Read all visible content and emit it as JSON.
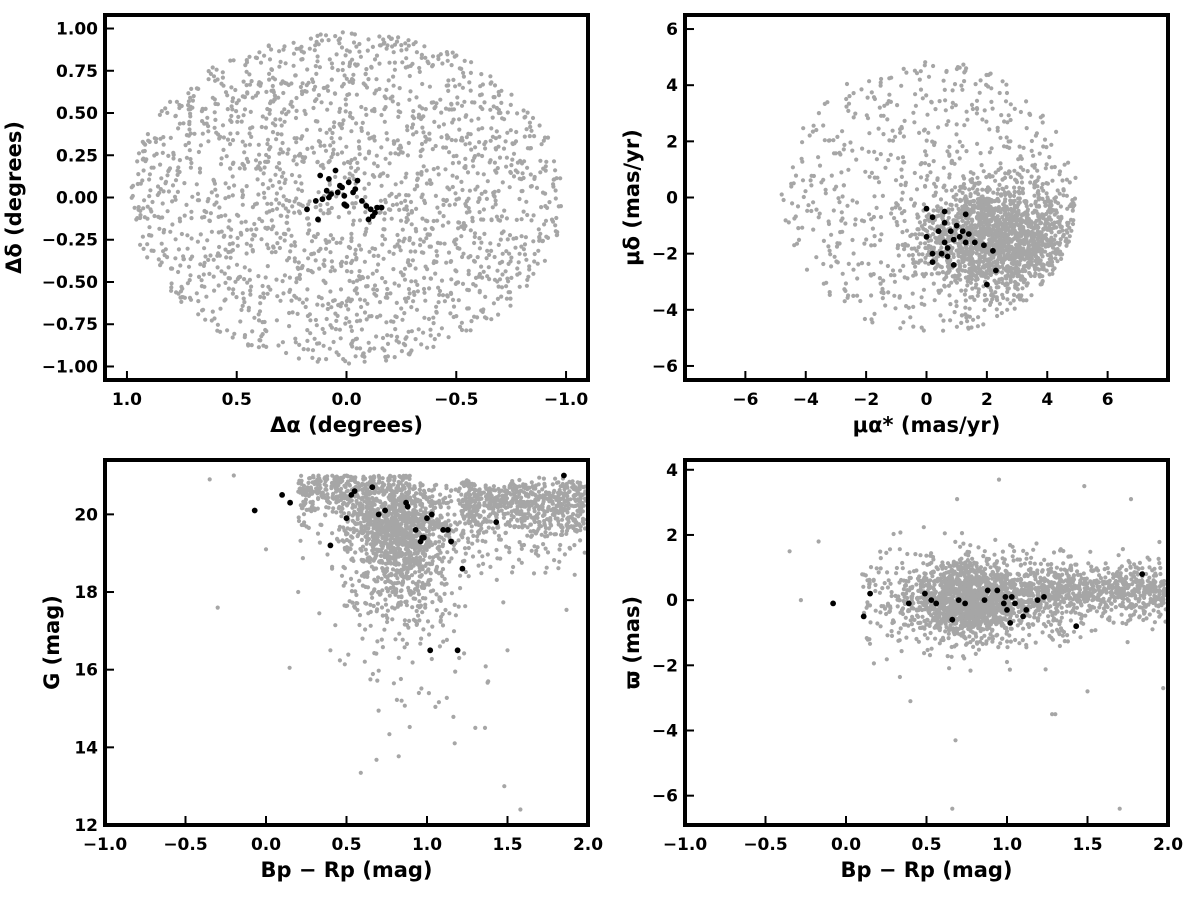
{
  "colors": {
    "field_stars": "#a6a6a6",
    "members": "#000000",
    "frame": "#000000"
  },
  "chart_data": [
    {
      "type": "scatter",
      "xlabel": "Δα (degrees)",
      "ylabel": "Δδ (degrees)",
      "xlim": [
        1.1,
        -1.1
      ],
      "ylim": [
        -1.08,
        1.08
      ],
      "x_reversed": true,
      "xticks": [
        1.0,
        0.5,
        0.0,
        -0.5,
        -1.0
      ],
      "xtick_labels": [
        "1.0",
        "0.5",
        "0.0",
        "−0.5",
        "−1.0"
      ],
      "yticks": [
        1.0,
        0.75,
        0.5,
        0.25,
        0.0,
        -0.25,
        -0.5,
        -0.75,
        -1.0
      ],
      "ytick_labels": [
        "1.00",
        "0.75",
        "0.50",
        "0.25",
        "0.00",
        "−0.25",
        "−0.50",
        "−0.75",
        "−1.00"
      ],
      "grid": false,
      "series": [
        {
          "points": [
            [
              0.05,
              0.16
            ],
            [
              0.08,
              0.11
            ],
            [
              0.12,
              0.13
            ],
            [
              0.09,
              0.04
            ],
            [
              0.03,
              0.07
            ],
            [
              -0.01,
              0.09
            ],
            [
              -0.05,
              0.1
            ],
            [
              0.07,
              0.02
            ],
            [
              0.04,
              0.03
            ],
            [
              0.01,
              0.01
            ],
            [
              -0.03,
              0.03
            ],
            [
              -0.07,
              -0.02
            ],
            [
              0.11,
              -0.01
            ],
            [
              0.14,
              -0.02
            ],
            [
              0.18,
              -0.07
            ],
            [
              0.13,
              -0.13
            ],
            [
              0.01,
              -0.04
            ],
            [
              0.0,
              -0.05
            ],
            [
              -0.09,
              -0.05
            ],
            [
              -0.11,
              -0.07
            ],
            [
              -0.12,
              -0.11
            ],
            [
              -0.1,
              -0.13
            ],
            [
              -0.13,
              -0.09
            ],
            [
              -0.14,
              -0.06
            ],
            [
              -0.16,
              -0.06
            ],
            [
              0.08,
              0.0
            ],
            [
              -0.04,
              0.05
            ],
            [
              0.02,
              0.06
            ]
          ]
        }
      ]
    },
    {
      "type": "scatter",
      "xlabel": "μα* (mas/yr)",
      "ylabel": "μδ (mas/yr)",
      "xlim": [
        -8,
        8
      ],
      "ylim": [
        -6.5,
        6.5
      ],
      "xticks": [
        -6,
        -4,
        -2,
        0,
        2,
        4,
        6
      ],
      "xtick_labels": [
        "−6",
        "−4",
        "−2",
        "0",
        "2",
        "4",
        "6"
      ],
      "yticks": [
        6,
        4,
        2,
        0,
        -2,
        -4,
        -6
      ],
      "ytick_labels": [
        "6",
        "4",
        "2",
        "0",
        "−2",
        "−4",
        "−6"
      ],
      "grid": false,
      "series": [
        {
          "points": [
            [
              0.0,
              -0.4
            ],
            [
              0.2,
              -0.7
            ],
            [
              0.6,
              -0.5
            ],
            [
              1.3,
              -0.6
            ],
            [
              0.6,
              -0.9
            ],
            [
              0.8,
              -1.2
            ],
            [
              1.0,
              -1.0
            ],
            [
              0.0,
              -1.4
            ],
            [
              0.9,
              -1.5
            ],
            [
              1.1,
              -1.4
            ],
            [
              1.2,
              -1.2
            ],
            [
              1.4,
              -1.3
            ],
            [
              1.6,
              -1.6
            ],
            [
              1.3,
              -1.6
            ],
            [
              0.6,
              -1.6
            ],
            [
              0.7,
              -1.8
            ],
            [
              0.2,
              -2.0
            ],
            [
              0.5,
              -2.0
            ],
            [
              0.7,
              -2.1
            ],
            [
              0.2,
              -2.3
            ],
            [
              0.9,
              -2.4
            ],
            [
              1.9,
              -1.7
            ],
            [
              2.2,
              -1.9
            ],
            [
              2.3,
              -2.6
            ],
            [
              2.0,
              -3.1
            ],
            [
              0.4,
              -1.2
            ]
          ]
        }
      ]
    },
    {
      "type": "scatter",
      "xlabel": "Bp − Rp (mag)",
      "ylabel": "G (mag)",
      "xlim": [
        -1.0,
        2.0
      ],
      "ylim": [
        12,
        21.4
      ],
      "xticks": [
        -1.0,
        -0.5,
        0.0,
        0.5,
        1.0,
        1.5,
        2.0
      ],
      "xtick_labels": [
        "−1.0",
        "−0.5",
        "0.0",
        "0.5",
        "1.0",
        "1.5",
        "2.0"
      ],
      "yticks": [
        12,
        14,
        16,
        18,
        20
      ],
      "ytick_labels": [
        "12",
        "14",
        "16",
        "18",
        "20"
      ],
      "grid": false,
      "series": [
        {
          "points": [
            [
              -0.07,
              20.1
            ],
            [
              0.1,
              20.5
            ],
            [
              0.15,
              20.3
            ],
            [
              0.4,
              19.2
            ],
            [
              0.5,
              19.9
            ],
            [
              0.53,
              20.5
            ],
            [
              0.55,
              20.6
            ],
            [
              0.66,
              20.7
            ],
            [
              0.7,
              20.0
            ],
            [
              0.74,
              20.1
            ],
            [
              0.87,
              20.3
            ],
            [
              0.88,
              20.2
            ],
            [
              0.93,
              19.6
            ],
            [
              0.96,
              19.3
            ],
            [
              0.97,
              19.4
            ],
            [
              0.98,
              19.4
            ],
            [
              1.0,
              19.9
            ],
            [
              1.03,
              20.0
            ],
            [
              1.1,
              19.6
            ],
            [
              1.13,
              19.6
            ],
            [
              1.15,
              19.3
            ],
            [
              1.22,
              18.6
            ],
            [
              1.43,
              19.8
            ],
            [
              1.85,
              21.0
            ],
            [
              1.02,
              16.5
            ],
            [
              1.19,
              16.5
            ]
          ]
        }
      ]
    },
    {
      "type": "scatter",
      "xlabel": "Bp − Rp (mag)",
      "ylabel": "ϖ (mas)",
      "xlim": [
        -1.0,
        2.0
      ],
      "ylim": [
        -6.9,
        4.3
      ],
      "xticks": [
        -1.0,
        -0.5,
        0.0,
        0.5,
        1.0,
        1.5,
        2.0
      ],
      "xtick_labels": [
        "−1.0",
        "−0.5",
        "0.0",
        "0.5",
        "1.0",
        "1.5",
        "2.0"
      ],
      "yticks": [
        4,
        2,
        0,
        -2,
        -4,
        -6
      ],
      "ytick_labels": [
        "4",
        "2",
        "0",
        "−2",
        "−4",
        "−6"
      ],
      "grid": false,
      "series": [
        {
          "points": [
            [
              -0.08,
              -0.1
            ],
            [
              0.11,
              -0.5
            ],
            [
              0.15,
              0.2
            ],
            [
              0.39,
              -0.1
            ],
            [
              0.49,
              0.2
            ],
            [
              0.53,
              0.0
            ],
            [
              0.56,
              -0.1
            ],
            [
              0.66,
              -0.6
            ],
            [
              0.7,
              0.0
            ],
            [
              0.74,
              -0.1
            ],
            [
              0.86,
              0.0
            ],
            [
              0.88,
              0.3
            ],
            [
              0.94,
              0.3
            ],
            [
              0.98,
              -0.1
            ],
            [
              0.99,
              0.1
            ],
            [
              1.0,
              -0.3
            ],
            [
              1.02,
              -0.7
            ],
            [
              1.03,
              0.1
            ],
            [
              1.05,
              -0.1
            ],
            [
              1.1,
              -0.5
            ],
            [
              1.12,
              -0.3
            ],
            [
              1.19,
              0.0
            ],
            [
              1.23,
              0.1
            ],
            [
              1.43,
              -0.8
            ],
            [
              1.84,
              0.8
            ]
          ]
        }
      ]
    }
  ]
}
